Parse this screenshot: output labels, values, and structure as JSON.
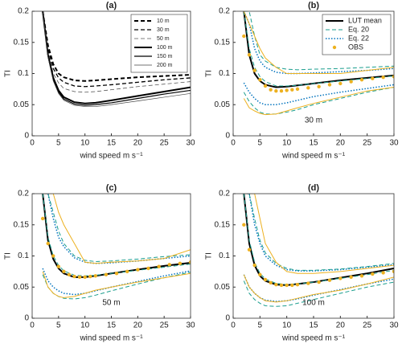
{
  "chart_data": [
    {
      "type": "line",
      "title": "(a)",
      "xlabel": "wind speed m s⁻¹",
      "ylabel": "TI",
      "xlim": [
        0,
        30
      ],
      "ylim": [
        0,
        0.2
      ],
      "xticks": [
        0,
        5,
        10,
        15,
        20,
        25,
        30
      ],
      "yticks": [
        0,
        0.05,
        0.1,
        0.15,
        0.2
      ],
      "legend": "northeast",
      "x": [
        2,
        3,
        4,
        5,
        6,
        8,
        10,
        12,
        15,
        20,
        25,
        30
      ],
      "series": [
        {
          "name": "10 m",
          "color": "#000000",
          "style": "dashed",
          "width": 2,
          "values": [
            0.2,
            0.145,
            0.115,
            0.1,
            0.094,
            0.089,
            0.088,
            0.089,
            0.091,
            0.094,
            0.096,
            0.098
          ]
        },
        {
          "name": "30 m",
          "color": "#000000",
          "style": "dashed",
          "width": 1.3,
          "values": [
            0.2,
            0.14,
            0.108,
            0.093,
            0.086,
            0.08,
            0.079,
            0.08,
            0.082,
            0.086,
            0.09,
            0.093
          ]
        },
        {
          "name": "50 m",
          "color": "#555555",
          "style": "dashed",
          "width": 0.8,
          "values": [
            0.2,
            0.135,
            0.1,
            0.085,
            0.076,
            0.071,
            0.07,
            0.071,
            0.074,
            0.079,
            0.083,
            0.087
          ]
        },
        {
          "name": "100 m",
          "color": "#000000",
          "style": "solid",
          "width": 2,
          "values": [
            0.2,
            0.13,
            0.093,
            0.073,
            0.062,
            0.054,
            0.052,
            0.053,
            0.057,
            0.064,
            0.071,
            0.078
          ]
        },
        {
          "name": "150 m",
          "color": "#000000",
          "style": "solid",
          "width": 1.2,
          "values": [
            0.2,
            0.128,
            0.09,
            0.07,
            0.059,
            0.051,
            0.049,
            0.05,
            0.053,
            0.06,
            0.067,
            0.073
          ]
        },
        {
          "name": "200 m",
          "color": "#444444",
          "style": "solid",
          "width": 0.7,
          "values": [
            0.2,
            0.126,
            0.088,
            0.068,
            0.057,
            0.049,
            0.047,
            0.047,
            0.05,
            0.056,
            0.062,
            0.068
          ]
        }
      ]
    },
    {
      "type": "line",
      "title": "(b)",
      "xlabel": "wind speed m s⁻¹",
      "ylabel": "TI",
      "annotation": "30 m",
      "xlim": [
        0,
        30
      ],
      "ylim": [
        0,
        0.2
      ],
      "xticks": [
        0,
        5,
        10,
        15,
        20,
        25,
        30
      ],
      "yticks": [
        0,
        0.05,
        0.1,
        0.15,
        0.2
      ],
      "legend": "northeast",
      "x": [
        2,
        3,
        4,
        5,
        6,
        8,
        10,
        12,
        15,
        20,
        25,
        30
      ],
      "series": [
        {
          "name": "LUT mean",
          "color": "#000000",
          "style": "solid",
          "width": 2,
          "values": [
            0.2,
            0.13,
            0.1,
            0.088,
            0.082,
            0.078,
            0.079,
            0.081,
            0.084,
            0.089,
            0.093,
            0.097
          ]
        },
        {
          "name": "Eq. 20",
          "color": "#1b9e8e",
          "style": "dashed",
          "width": 1,
          "values": [
            0.2,
            0.14,
            0.11,
            0.095,
            0.087,
            0.08,
            0.08,
            0.081,
            0.084,
            0.088,
            0.092,
            0.096
          ]
        },
        {
          "name": "Eq. 22",
          "color": "#0072bd",
          "style": "dotted",
          "width": 1.5,
          "values": [
            0.2,
            0.18,
            0.14,
            0.12,
            0.11,
            0.102,
            0.1,
            0.1,
            0.101,
            0.103,
            0.105,
            0.108
          ]
        },
        {
          "name": "OBS",
          "color": "#edb120",
          "style": "dots",
          "width": 1,
          "x": [
            2,
            3,
            4,
            5,
            6,
            7,
            8,
            9,
            10,
            11,
            12,
            14,
            16,
            18,
            20,
            22,
            24,
            26,
            28,
            30
          ],
          "values": [
            0.16,
            0.13,
            0.105,
            0.09,
            0.08,
            0.074,
            0.072,
            0.072,
            0.073,
            0.074,
            0.075,
            0.077,
            0.079,
            0.082,
            0.084,
            0.087,
            0.09,
            0.092,
            0.094,
            0.095
          ]
        },
        {
          "color": "#1b9e8e",
          "style": "dashed",
          "width": 1,
          "values": [
            0.2,
            0.2,
            0.16,
            0.13,
            0.12,
            0.11,
            0.107,
            0.106,
            0.107,
            0.108,
            0.11,
            0.112
          ]
        },
        {
          "color": "#1b9e8e",
          "style": "dashed",
          "width": 1,
          "values": [
            0.07,
            0.055,
            0.045,
            0.038,
            0.035,
            0.035,
            0.038,
            0.042,
            0.05,
            0.06,
            0.07,
            0.078
          ]
        },
        {
          "color": "#0072bd",
          "style": "dotted",
          "width": 1.5,
          "values": [
            0.085,
            0.07,
            0.06,
            0.053,
            0.05,
            0.05,
            0.053,
            0.057,
            0.063,
            0.07,
            0.076,
            0.082
          ]
        },
        {
          "color": "#edb120",
          "style": "solid",
          "width": 1,
          "values": [
            0.2,
            0.18,
            0.16,
            0.14,
            0.125,
            0.11,
            0.1,
            0.1,
            0.1,
            0.1,
            0.105,
            0.11
          ]
        },
        {
          "color": "#edb120",
          "style": "solid",
          "width": 1,
          "values": [
            0.06,
            0.045,
            0.04,
            0.036,
            0.034,
            0.035,
            0.04,
            0.045,
            0.052,
            0.062,
            0.072,
            0.078
          ]
        }
      ]
    },
    {
      "type": "line",
      "title": "(c)",
      "xlabel": "wind speed m s⁻¹",
      "ylabel": "TI",
      "annotation": "50 m",
      "xlim": [
        0,
        30
      ],
      "ylim": [
        0,
        0.2
      ],
      "xticks": [
        0,
        5,
        10,
        15,
        20,
        25,
        30
      ],
      "yticks": [
        0,
        0.05,
        0.1,
        0.15,
        0.2
      ],
      "x": [
        2,
        3,
        4,
        5,
        6,
        8,
        10,
        12,
        15,
        20,
        25,
        30
      ],
      "series": [
        {
          "color": "#000000",
          "style": "solid",
          "width": 2,
          "values": [
            0.2,
            0.125,
            0.095,
            0.08,
            0.072,
            0.066,
            0.066,
            0.068,
            0.072,
            0.078,
            0.084,
            0.089
          ]
        },
        {
          "color": "#1b9e8e",
          "style": "dashed",
          "width": 1,
          "values": [
            0.2,
            0.13,
            0.1,
            0.085,
            0.076,
            0.069,
            0.068,
            0.069,
            0.072,
            0.077,
            0.082,
            0.087
          ]
        },
        {
          "color": "#0072bd",
          "style": "dotted",
          "width": 1.5,
          "values": [
            0.2,
            0.2,
            0.16,
            0.13,
            0.115,
            0.097,
            0.09,
            0.088,
            0.089,
            0.092,
            0.096,
            0.1
          ]
        },
        {
          "color": "#edb120",
          "style": "dots",
          "width": 1,
          "x": [
            2,
            3,
            4,
            5,
            6,
            7,
            8,
            9,
            10,
            11,
            12,
            14,
            16,
            18,
            20,
            22,
            24,
            26,
            28,
            30
          ],
          "values": [
            0.16,
            0.12,
            0.1,
            0.083,
            0.075,
            0.07,
            0.067,
            0.066,
            0.066,
            0.067,
            0.068,
            0.07,
            0.072,
            0.075,
            0.078,
            0.08,
            0.083,
            0.086,
            0.088,
            0.09
          ]
        },
        {
          "color": "#1b9e8e",
          "style": "dashed",
          "width": 1,
          "values": [
            0.2,
            0.2,
            0.17,
            0.14,
            0.12,
            0.1,
            0.093,
            0.091,
            0.092,
            0.095,
            0.099,
            0.102
          ]
        },
        {
          "color": "#1b9e8e",
          "style": "dashed",
          "width": 1,
          "values": [
            0.07,
            0.05,
            0.04,
            0.035,
            0.032,
            0.031,
            0.033,
            0.037,
            0.044,
            0.055,
            0.065,
            0.074
          ]
        },
        {
          "color": "#0072bd",
          "style": "dotted",
          "width": 1.5,
          "values": [
            0.08,
            0.06,
            0.05,
            0.044,
            0.04,
            0.038,
            0.04,
            0.044,
            0.05,
            0.059,
            0.068,
            0.076
          ]
        },
        {
          "color": "#edb120",
          "style": "solid",
          "width": 1,
          "values": [
            0.2,
            0.2,
            0.2,
            0.17,
            0.15,
            0.12,
            0.09,
            0.088,
            0.09,
            0.092,
            0.096,
            0.11
          ]
        },
        {
          "color": "#edb120",
          "style": "solid",
          "width": 1,
          "values": [
            0.075,
            0.05,
            0.04,
            0.035,
            0.033,
            0.035,
            0.04,
            0.045,
            0.05,
            0.058,
            0.065,
            0.072
          ]
        }
      ]
    },
    {
      "type": "line",
      "title": "(d)",
      "xlabel": "wind speed m s⁻¹",
      "ylabel": "TI",
      "annotation": "100 m",
      "xlim": [
        0,
        30
      ],
      "ylim": [
        0,
        0.2
      ],
      "xticks": [
        0,
        5,
        10,
        15,
        20,
        25,
        30
      ],
      "yticks": [
        0,
        0.05,
        0.1,
        0.15,
        0.2
      ],
      "x": [
        2,
        3,
        4,
        5,
        6,
        8,
        10,
        12,
        15,
        20,
        25,
        30
      ],
      "series": [
        {
          "color": "#000000",
          "style": "solid",
          "width": 2,
          "values": [
            0.2,
            0.12,
            0.085,
            0.068,
            0.06,
            0.054,
            0.053,
            0.055,
            0.058,
            0.065,
            0.072,
            0.08
          ]
        },
        {
          "color": "#1b9e8e",
          "style": "dashed",
          "width": 1,
          "values": [
            0.2,
            0.125,
            0.09,
            0.072,
            0.063,
            0.056,
            0.054,
            0.055,
            0.058,
            0.064,
            0.07,
            0.077
          ]
        },
        {
          "color": "#0072bd",
          "style": "dotted",
          "width": 1.5,
          "values": [
            0.2,
            0.2,
            0.15,
            0.12,
            0.1,
            0.085,
            0.078,
            0.076,
            0.076,
            0.078,
            0.082,
            0.086
          ]
        },
        {
          "color": "#edb120",
          "style": "dots",
          "width": 1,
          "x": [
            2,
            3,
            4,
            5,
            6,
            7,
            8,
            9,
            10,
            11,
            12,
            14,
            16,
            18,
            20,
            22,
            24,
            26,
            28,
            30
          ],
          "values": [
            0.15,
            0.11,
            0.085,
            0.07,
            0.062,
            0.057,
            0.054,
            0.053,
            0.053,
            0.053,
            0.054,
            0.056,
            0.058,
            0.061,
            0.064,
            0.066,
            0.068,
            0.071,
            0.073,
            0.075
          ]
        },
        {
          "color": "#1b9e8e",
          "style": "dashed",
          "width": 1,
          "values": [
            0.2,
            0.2,
            0.16,
            0.125,
            0.105,
            0.088,
            0.08,
            0.077,
            0.077,
            0.079,
            0.083,
            0.088
          ]
        },
        {
          "color": "#1b9e8e",
          "style": "dashed",
          "width": 1,
          "values": [
            0.06,
            0.04,
            0.03,
            0.024,
            0.02,
            0.019,
            0.02,
            0.024,
            0.03,
            0.04,
            0.05,
            0.058
          ]
        },
        {
          "color": "#0072bd",
          "style": "dotted",
          "width": 1.5,
          "values": [
            0.07,
            0.05,
            0.04,
            0.033,
            0.029,
            0.027,
            0.028,
            0.031,
            0.037,
            0.046,
            0.055,
            0.063
          ]
        },
        {
          "color": "#edb120",
          "style": "solid",
          "width": 1,
          "values": [
            0.2,
            0.2,
            0.2,
            0.16,
            0.12,
            0.09,
            0.075,
            0.072,
            0.072,
            0.075,
            0.08,
            0.085
          ]
        },
        {
          "color": "#edb120",
          "style": "solid",
          "width": 1,
          "values": [
            0.07,
            0.05,
            0.04,
            0.033,
            0.028,
            0.026,
            0.028,
            0.032,
            0.038,
            0.045,
            0.055,
            0.066
          ]
        }
      ]
    }
  ]
}
